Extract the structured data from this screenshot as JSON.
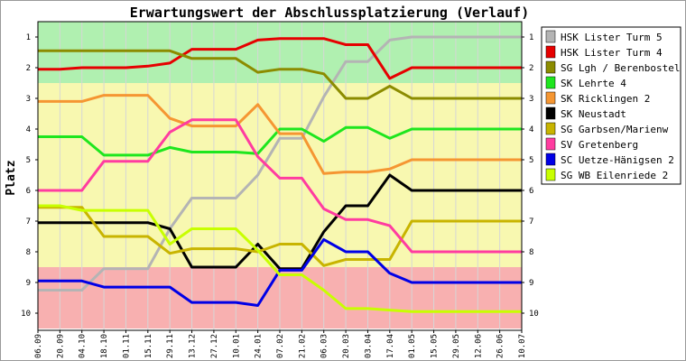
{
  "chart_data": {
    "type": "line",
    "title": "Erwartungswert der Abschlussplatzierung (Verlauf)",
    "xlabel": "",
    "ylabel": "Platz",
    "ylim": [
      1,
      10
    ],
    "y_inverted": true,
    "yticks": [
      "1",
      "2",
      "3",
      "4",
      "5",
      "6",
      "7",
      "8",
      "9",
      "10"
    ],
    "x": [
      "06.09",
      "20.09",
      "04.10",
      "18.10",
      "01.11",
      "15.11",
      "29.11",
      "13.12",
      "27.12",
      "10.01",
      "24.01",
      "07.02",
      "21.02",
      "06.03",
      "20.03",
      "03.04",
      "17.04",
      "01.05",
      "15.05",
      "29.05",
      "12.06",
      "26.06",
      "10.07"
    ],
    "legend_position": "right",
    "background_bands": [
      {
        "from": 0.5,
        "to": 2.5,
        "color": "#b0f0b0"
      },
      {
        "from": 2.5,
        "to": 8.5,
        "color": "#f8f8b0"
      },
      {
        "from": 8.5,
        "to": 10.5,
        "color": "#f8b0b0"
      }
    ],
    "series": [
      {
        "name": "HSK Lister Turm 5",
        "color": "#b4b4b4",
        "values": [
          9.25,
          9.25,
          9.25,
          8.55,
          8.55,
          8.55,
          7.25,
          6.25,
          6.25,
          6.25,
          5.5,
          4.3,
          4.3,
          2.95,
          1.8,
          1.8,
          1.1,
          1.0,
          1.0,
          1.0,
          1.0,
          1.0,
          1.0
        ]
      },
      {
        "name": "HSK Lister Turm 4",
        "color": "#e60000",
        "values": [
          2.05,
          2.05,
          2.0,
          2.0,
          2.0,
          1.95,
          1.85,
          1.4,
          1.4,
          1.4,
          1.1,
          1.05,
          1.05,
          1.05,
          1.25,
          1.25,
          2.35,
          2.0,
          2.0,
          2.0,
          2.0,
          2.0,
          2.0
        ]
      },
      {
        "name": "SG Lgh / Berenbostel 2",
        "color": "#8c8c00",
        "values": [
          1.45,
          1.45,
          1.45,
          1.45,
          1.45,
          1.45,
          1.45,
          1.7,
          1.7,
          1.7,
          2.15,
          2.05,
          2.05,
          2.2,
          3.0,
          3.0,
          2.6,
          3.0,
          3.0,
          3.0,
          3.0,
          3.0,
          3.0
        ]
      },
      {
        "name": "SK Lehrte 4",
        "color": "#1ee61e",
        "values": [
          4.25,
          4.25,
          4.25,
          4.85,
          4.85,
          4.85,
          4.6,
          4.75,
          4.75,
          4.75,
          4.8,
          4.0,
          4.0,
          4.4,
          3.95,
          3.95,
          4.3,
          4.0,
          4.0,
          4.0,
          4.0,
          4.0,
          4.0
        ]
      },
      {
        "name": "SK Ricklingen 2",
        "color": "#f59632",
        "values": [
          3.1,
          3.1,
          3.1,
          2.9,
          2.9,
          2.9,
          3.65,
          3.9,
          3.9,
          3.9,
          3.2,
          4.15,
          4.15,
          5.45,
          5.4,
          5.4,
          5.3,
          5.0,
          5.0,
          5.0,
          5.0,
          5.0,
          5.0
        ]
      },
      {
        "name": "SK Neustadt",
        "color": "#000000",
        "values": [
          7.05,
          7.05,
          7.05,
          7.05,
          7.05,
          7.05,
          7.25,
          8.5,
          8.5,
          8.5,
          7.75,
          8.55,
          8.55,
          7.35,
          6.5,
          6.5,
          5.5,
          6.0,
          6.0,
          6.0,
          6.0,
          6.0,
          6.0
        ]
      },
      {
        "name": "SG Garbsen/Marienw",
        "color": "#c8b400",
        "values": [
          6.55,
          6.55,
          6.55,
          7.5,
          7.5,
          7.5,
          8.05,
          7.9,
          7.9,
          7.9,
          8.0,
          7.75,
          7.75,
          8.45,
          8.25,
          8.25,
          8.25,
          7.0,
          7.0,
          7.0,
          7.0,
          7.0,
          7.0
        ]
      },
      {
        "name": "SV Gretenberg",
        "color": "#ff3ca0",
        "values": [
          6.0,
          6.0,
          6.0,
          5.05,
          5.05,
          5.05,
          4.1,
          3.7,
          3.7,
          3.7,
          4.9,
          5.6,
          5.6,
          6.6,
          6.95,
          6.95,
          7.15,
          8.0,
          8.0,
          8.0,
          8.0,
          8.0,
          8.0
        ]
      },
      {
        "name": "SC Uetze-Hänigsen 2",
        "color": "#0000e6",
        "values": [
          8.95,
          8.95,
          8.95,
          9.15,
          9.15,
          9.15,
          9.15,
          9.65,
          9.65,
          9.65,
          9.75,
          8.6,
          8.6,
          7.6,
          8.0,
          8.0,
          8.7,
          9.0,
          9.0,
          9.0,
          9.0,
          9.0,
          9.0
        ]
      },
      {
        "name": "SG WB Eilenriede 2",
        "color": "#c8ff00",
        "values": [
          6.5,
          6.5,
          6.65,
          6.65,
          6.65,
          6.65,
          7.75,
          7.25,
          7.25,
          7.25,
          7.95,
          8.75,
          8.75,
          9.25,
          9.85,
          9.85,
          9.9,
          9.95,
          9.95,
          9.95,
          9.95,
          9.95,
          9.95
        ]
      }
    ]
  }
}
